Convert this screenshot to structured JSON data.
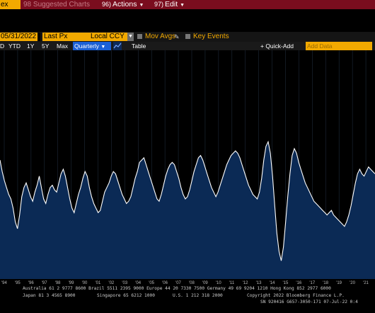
{
  "toolbar": {
    "ticker": "ex",
    "suggested": "98 Suggested Charts",
    "actions_num": "96)",
    "actions_label": "Actions",
    "edit_num": "97)",
    "edit_label": "Edit"
  },
  "settings": {
    "date": "05/31/2022",
    "field": "Last Px",
    "currency": "Local CCY",
    "mov_avgs": "Mov Avgs",
    "key_events": "Key Events"
  },
  "periods": {
    "ytd": "YTD",
    "y1": "1Y",
    "y5": "5Y",
    "max": "Max",
    "frequency": "Quarterly",
    "table": "Table",
    "quick_add": "+ Quick-Add",
    "add_data": "Add Data"
  },
  "footer": {
    "line1": "Australia 61 2 9777 8600 Brazil 5511 2395 9000 Europe 44 20 7330 7500 Germany 49 69 9204 1210 Hong Kong 852 2977 6000",
    "line2a": "Japan 81 3 4565 8900",
    "line2b": "Singapore 65 6212 1000",
    "line2c": "U.S. 1 212 318 2000",
    "line2d": "Copyright 2022 Bloomberg Finance L.P.",
    "line3": "SN 920416 G657-3050-171 07-Jul-22  0:4"
  },
  "colors": {
    "accent": "#f2a900",
    "toolbar_red": "#7a0d1e",
    "line": "#ffffff",
    "area": "#0b2a55",
    "grid": "#1e2a3a"
  },
  "chart_data": {
    "type": "area",
    "x_tick_labels": [
      "'94",
      "'95",
      "'96",
      "'97",
      "'98",
      "'99",
      "'00",
      "'01",
      "'02",
      "'03",
      "'04",
      "'05",
      "'06",
      "'07",
      "'08",
      "'09",
      "'10",
      "'11",
      "'12",
      "'13",
      "'14",
      "'15",
      "'16",
      "'17",
      "'18",
      "'19",
      "'20",
      "'21"
    ],
    "ylim": [
      0,
      100
    ],
    "values": [
      52,
      47,
      43,
      40,
      37,
      35,
      31,
      25,
      22,
      28,
      36,
      40,
      42,
      39,
      36,
      34,
      38,
      41,
      45,
      40,
      35,
      33,
      37,
      40,
      41,
      39,
      38,
      42,
      46,
      48,
      45,
      40,
      35,
      31,
      29,
      33,
      37,
      40,
      44,
      47,
      45,
      40,
      36,
      33,
      31,
      29,
      30,
      34,
      38,
      40,
      42,
      45,
      47,
      46,
      43,
      40,
      37,
      35,
      33,
      34,
      36,
      40,
      44,
      47,
      51,
      52,
      53,
      50,
      47,
      44,
      41,
      38,
      35,
      34,
      37,
      41,
      45,
      48,
      50,
      51,
      50,
      47,
      44,
      40,
      37,
      35,
      36,
      39,
      43,
      47,
      50,
      53,
      54,
      52,
      49,
      46,
      43,
      40,
      38,
      36,
      38,
      41,
      44,
      47,
      50,
      52,
      54,
      55,
      56,
      55,
      53,
      50,
      47,
      44,
      41,
      39,
      37,
      36,
      35,
      38,
      44,
      52,
      58,
      60,
      55,
      45,
      32,
      20,
      12,
      8,
      14,
      25,
      36,
      46,
      54,
      57,
      55,
      51,
      48,
      45,
      42,
      40,
      38,
      36,
      34,
      33,
      32,
      31,
      30,
      29,
      28,
      29,
      30,
      28,
      27,
      26,
      25,
      24,
      23,
      25,
      28,
      32,
      37,
      42,
      46,
      48,
      46,
      45,
      47,
      49,
      48,
      47,
      46
    ]
  }
}
